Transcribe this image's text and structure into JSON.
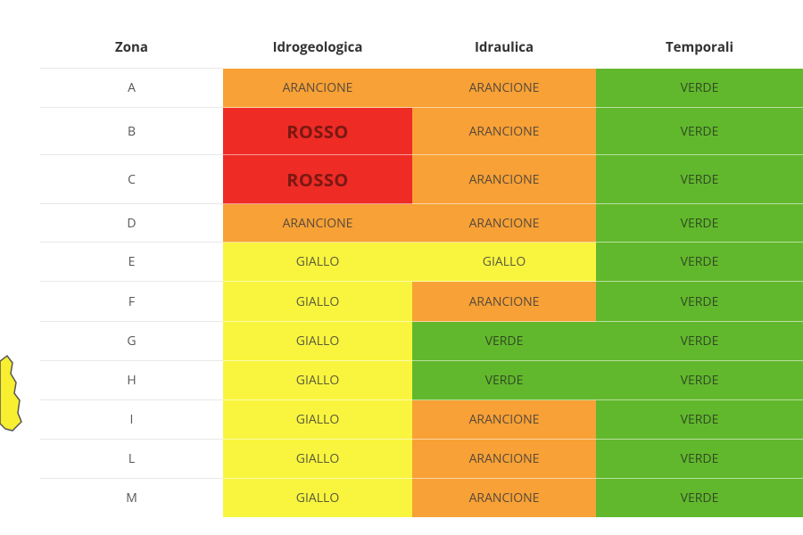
{
  "table": {
    "header": [
      "Zona",
      "Idrogeologica",
      "Idraulica",
      "Temporali"
    ],
    "rows": [
      [
        "A",
        "ARANCIONE",
        "ARANCIONE",
        "VERDE"
      ],
      [
        "B",
        "ROSSO",
        "ARANCIONE",
        "VERDE"
      ],
      [
        "C",
        "ROSSO",
        "ARANCIONE",
        "VERDE"
      ],
      [
        "D",
        "ARANCIONE",
        "ARANCIONE",
        "VERDE"
      ],
      [
        "E",
        "GIALLO",
        "GIALLO",
        "VERDE"
      ],
      [
        "F",
        "GIALLO",
        "ARANCIONE",
        "VERDE"
      ],
      [
        "G",
        "GIALLO",
        "VERDE",
        "VERDE"
      ],
      [
        "H",
        "GIALLO",
        "VERDE",
        "VERDE"
      ],
      [
        "I",
        "GIALLO",
        "ARANCIONE",
        "VERDE"
      ],
      [
        "L",
        "GIALLO",
        "ARANCIONE",
        "VERDE"
      ],
      [
        "M",
        "GIALLO",
        "ARANCIONE",
        "VERDE"
      ]
    ]
  },
  "levels": {
    "ROSSO": {
      "fill": "#ee2b25",
      "text": "#7a1812",
      "bold": true
    },
    "ARANCIONE": {
      "fill": "#f7a136",
      "text": "#5a4a3a",
      "bold": false
    },
    "GIALLO": {
      "fill": "#f9f53f",
      "text": "#5a5a3a",
      "bold": false
    },
    "VERDE": {
      "fill": "#62b82c",
      "text": "#2f4a24",
      "bold": false
    }
  }
}
